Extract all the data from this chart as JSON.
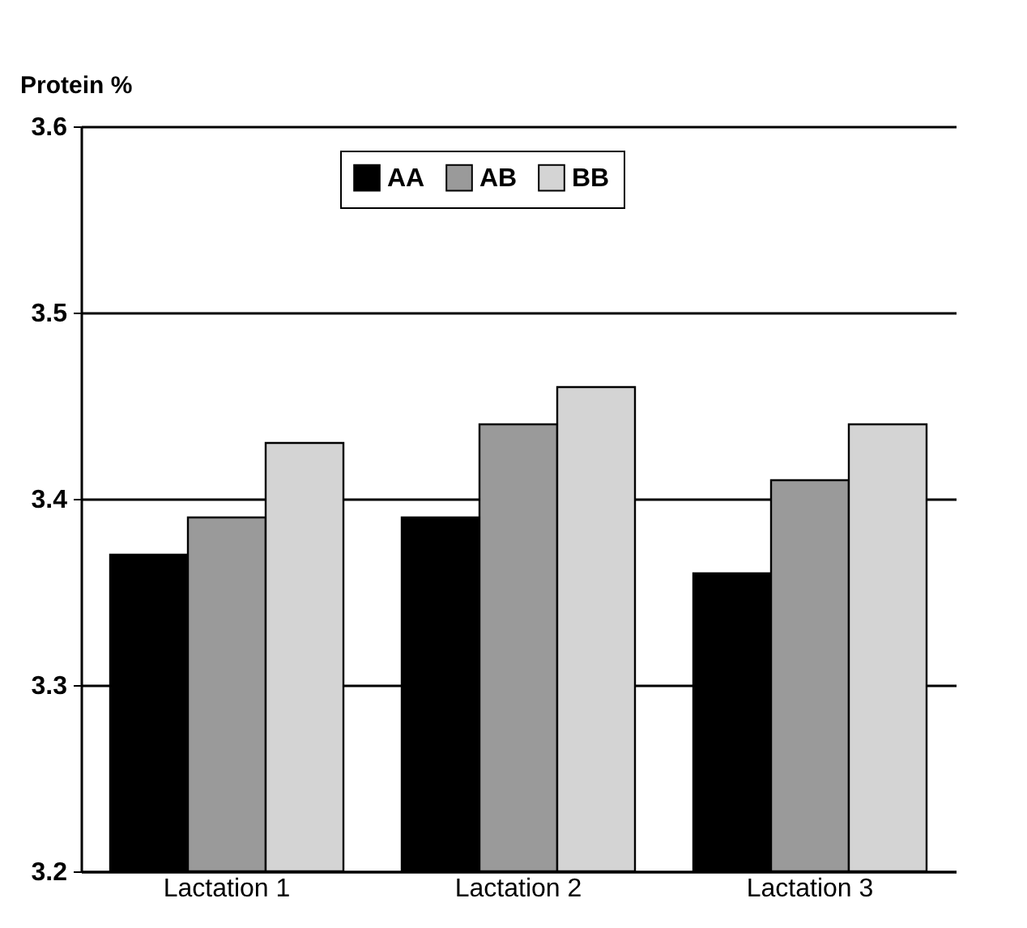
{
  "chart_data": {
    "type": "bar",
    "ylabel": "Protein %",
    "categories": [
      "Lactation 1",
      "Lactation 2",
      "Lactation 3"
    ],
    "series": [
      {
        "name": "AA",
        "color": "#000000",
        "values": [
          3.37,
          3.39,
          3.36
        ]
      },
      {
        "name": "AB",
        "color": "#9a9a9a",
        "values": [
          3.39,
          3.44,
          3.41
        ]
      },
      {
        "name": "BB",
        "color": "#d4d4d4",
        "values": [
          3.43,
          3.46,
          3.44
        ]
      }
    ],
    "ylim": [
      3.2,
      3.6
    ],
    "yticks": [
      3.2,
      3.3,
      3.4,
      3.5,
      3.6
    ],
    "grid": "y",
    "legend": "top"
  }
}
